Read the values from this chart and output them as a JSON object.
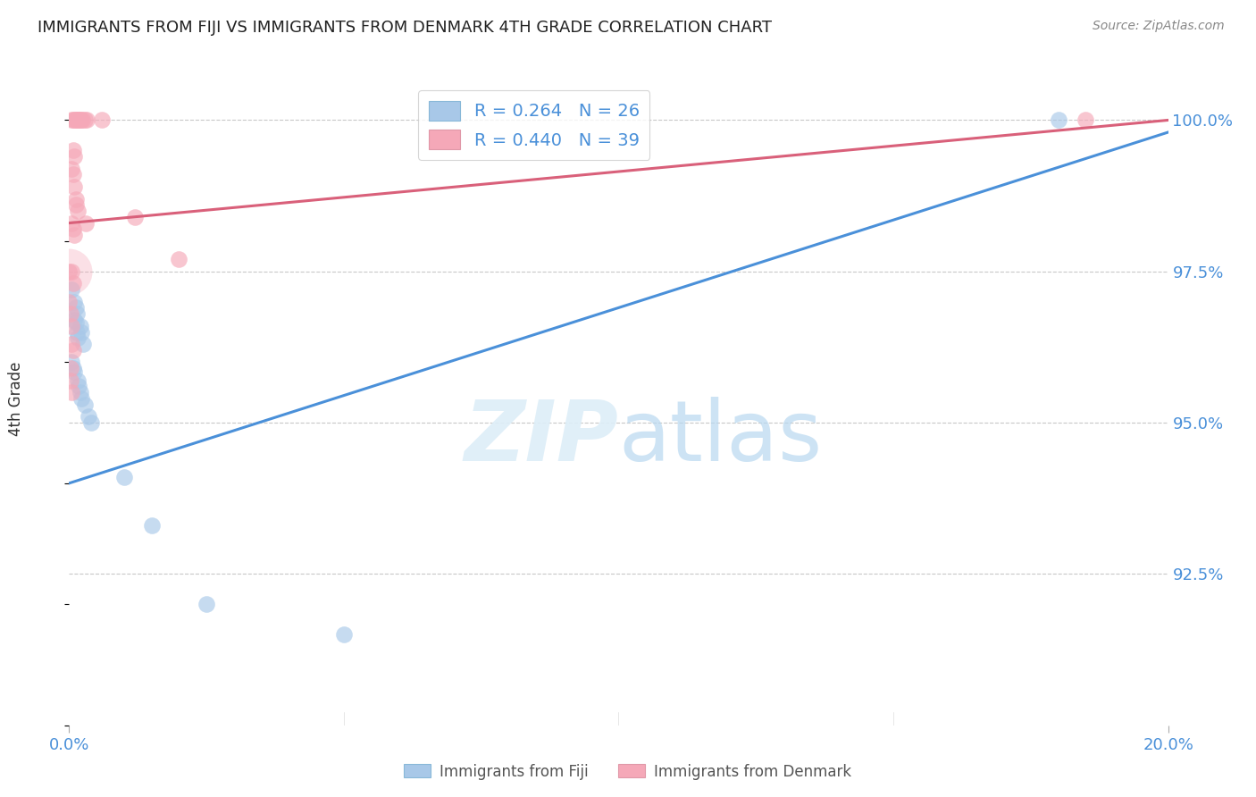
{
  "title": "IMMIGRANTS FROM FIJI VS IMMIGRANTS FROM DENMARK 4TH GRADE CORRELATION CHART",
  "source": "Source: ZipAtlas.com",
  "ylabel_label": "4th Grade",
  "xmin": 0.0,
  "xmax": 20.0,
  "ymin": 90.0,
  "ymax": 100.8,
  "fiji_color": "#a8c8e8",
  "denmark_color": "#f5a8b8",
  "fiji_R": 0.264,
  "fiji_N": 26,
  "denmark_R": 0.44,
  "denmark_N": 39,
  "fiji_line_color": "#4a90d9",
  "denmark_line_color": "#d9607a",
  "fiji_line_x0": 0.0,
  "fiji_line_y0": 94.0,
  "fiji_line_x1": 20.0,
  "fiji_line_y1": 99.8,
  "denmark_line_x0": 0.0,
  "denmark_line_y0": 98.3,
  "denmark_line_x1": 20.0,
  "denmark_line_y1": 100.0,
  "fiji_points": [
    [
      0.05,
      97.2
    ],
    [
      0.1,
      97.0
    ],
    [
      0.12,
      96.9
    ],
    [
      0.14,
      96.8
    ],
    [
      0.1,
      96.7
    ],
    [
      0.12,
      96.65
    ],
    [
      0.14,
      96.5
    ],
    [
      0.16,
      96.4
    ],
    [
      0.2,
      96.6
    ],
    [
      0.22,
      96.5
    ],
    [
      0.25,
      96.3
    ],
    [
      0.05,
      96.0
    ],
    [
      0.08,
      95.9
    ],
    [
      0.1,
      95.85
    ],
    [
      0.15,
      95.7
    ],
    [
      0.18,
      95.6
    ],
    [
      0.2,
      95.5
    ],
    [
      0.22,
      95.4
    ],
    [
      0.28,
      95.3
    ],
    [
      0.35,
      95.1
    ],
    [
      0.4,
      95.0
    ],
    [
      1.0,
      94.1
    ],
    [
      1.5,
      93.3
    ],
    [
      2.5,
      92.0
    ],
    [
      5.0,
      91.5
    ],
    [
      18.0,
      100.0
    ]
  ],
  "denmark_points": [
    [
      0.05,
      100.0
    ],
    [
      0.08,
      100.0
    ],
    [
      0.1,
      100.0
    ],
    [
      0.12,
      100.0
    ],
    [
      0.14,
      100.0
    ],
    [
      0.16,
      100.0
    ],
    [
      0.18,
      100.0
    ],
    [
      0.2,
      100.0
    ],
    [
      0.22,
      100.0
    ],
    [
      0.24,
      100.0
    ],
    [
      0.28,
      100.0
    ],
    [
      0.32,
      100.0
    ],
    [
      0.6,
      100.0
    ],
    [
      0.05,
      99.2
    ],
    [
      0.08,
      99.1
    ],
    [
      0.1,
      98.9
    ],
    [
      0.12,
      98.7
    ],
    [
      0.05,
      98.3
    ],
    [
      0.08,
      98.2
    ],
    [
      0.1,
      98.1
    ],
    [
      0.05,
      97.5
    ],
    [
      0.08,
      97.3
    ],
    [
      0.02,
      96.8
    ],
    [
      0.05,
      96.6
    ],
    [
      0.02,
      95.9
    ],
    [
      0.05,
      95.5
    ],
    [
      0.3,
      98.3
    ],
    [
      1.2,
      98.4
    ],
    [
      2.0,
      97.7
    ],
    [
      0.0,
      97.5
    ],
    [
      18.5,
      100.0
    ],
    [
      0.08,
      99.5
    ],
    [
      0.1,
      99.4
    ],
    [
      0.05,
      96.3
    ],
    [
      0.08,
      96.2
    ],
    [
      0.03,
      95.7
    ],
    [
      0.12,
      98.6
    ],
    [
      0.15,
      98.5
    ],
    [
      0.0,
      97.0
    ]
  ],
  "denmark_large_dot_x": 0.0,
  "denmark_large_dot_y": 97.5
}
